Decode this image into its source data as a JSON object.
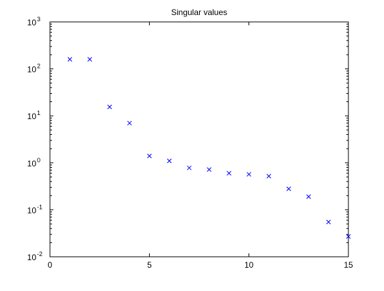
{
  "chart_data": {
    "type": "scatter",
    "title": "Singular values",
    "xlabel": "",
    "ylabel": "",
    "xlim": [
      0,
      15
    ],
    "ylim": [
      0.01,
      1000
    ],
    "yscale": "log",
    "grid": false,
    "marker": "x",
    "marker_color": "#0000ff",
    "x_ticks": [
      0,
      5,
      10,
      15
    ],
    "x_tick_labels": [
      "0",
      "5",
      "10",
      "15"
    ],
    "y_ticks": [
      0.01,
      0.1,
      1,
      10,
      100,
      1000
    ],
    "y_tick_labels": [
      {
        "base": "10",
        "exp": "-2"
      },
      {
        "base": "10",
        "exp": "-1"
      },
      {
        "base": "10",
        "exp": "0"
      },
      {
        "base": "10",
        "exp": "1"
      },
      {
        "base": "10",
        "exp": "2"
      },
      {
        "base": "10",
        "exp": "3"
      }
    ],
    "series": [
      {
        "x": [
          1,
          2,
          3,
          4,
          5,
          6,
          7,
          8,
          9,
          10,
          11,
          12,
          13,
          14,
          15
        ],
        "y": [
          160,
          160,
          15.5,
          7,
          1.4,
          1.1,
          0.78,
          0.72,
          0.6,
          0.57,
          0.52,
          0.28,
          0.19,
          0.055,
          0.027
        ]
      }
    ]
  }
}
